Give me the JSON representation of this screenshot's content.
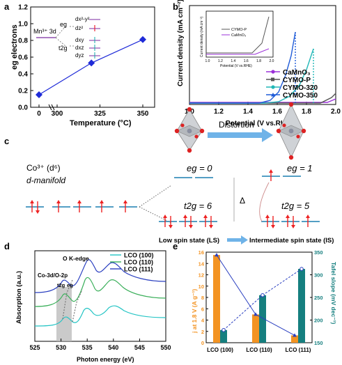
{
  "panels": {
    "a": "a",
    "b": "b",
    "c": "c",
    "d": "d",
    "e": "e"
  },
  "chart_data": [
    {
      "panel": "a",
      "type": "line",
      "xlabel": "Temperature (°C)",
      "ylabel": "eg electrons",
      "x_ticks": [
        "0",
        "300",
        "325",
        "350"
      ],
      "y_ticks": [
        "0.0",
        "0.2",
        "0.4",
        "0.6",
        "0.8",
        "1.0",
        "1.2"
      ],
      "ylim": [
        0.0,
        1.2
      ],
      "x": [
        0,
        320,
        350
      ],
      "y": [
        0.15,
        0.53,
        0.81
      ],
      "marker": "diamond",
      "color": "#1f2bd8",
      "inset": {
        "ion": "Mn³⁺ 3d",
        "eg": "eg",
        "t2g": "t2g",
        "orbitals": [
          "dx²-y²",
          "dz²",
          "dxy",
          "dxz",
          "dyz"
        ]
      }
    },
    {
      "panel": "b",
      "type": "line",
      "xlabel": "Potential (V vs.RHE)",
      "ylabel": "Current density (mA cm⁻²)",
      "x_ticks": [
        "1.0",
        "1.2",
        "1.4",
        "1.6",
        "1.8",
        "2.0"
      ],
      "xlim": [
        1.0,
        2.0
      ],
      "series": [
        {
          "name": "CaMnO₃",
          "color": "#9b30d9",
          "marker": "dot"
        },
        {
          "name": "CYMO-P",
          "color": "#555555",
          "marker": "square"
        },
        {
          "name": "CYMO-320",
          "color": "#20b7b7",
          "marker": "dot"
        },
        {
          "name": "CYMO-350",
          "color": "#1f5bd8",
          "marker": "triangle"
        }
      ],
      "inset": {
        "xlabel": "Potential (V vs.RHE)",
        "ylabel": "Current density (mA cm⁻²)",
        "x_ticks": [
          "1.0",
          "1.2",
          "1.4",
          "1.6",
          "1.8",
          "2.0"
        ],
        "series": [
          {
            "name": "CYMO-P",
            "color": "#555555"
          },
          {
            "name": "CaMnO₃",
            "color": "#9b30d9"
          }
        ]
      }
    },
    {
      "panel": "c",
      "type": "diagram",
      "ion": "Co³⁺ (d⁶)",
      "manifold": "d-manifold",
      "distortion": "Distortion",
      "eg_ls": "eg = 0",
      "t2g_ls": "t2g = 6",
      "eg_is": "eg = 1",
      "t2g_is": "t2g = 5",
      "delta": "Δ",
      "ls_label": "Low spin state (LS)",
      "is_label": "Intermediate spin state (IS)"
    },
    {
      "panel": "d",
      "type": "line",
      "xlabel": "Photon energy (eV)",
      "ylabel": "Absorption (a.u.)",
      "x_ticks": [
        "525",
        "530",
        "535",
        "540",
        "545",
        "550"
      ],
      "xlim": [
        525,
        550
      ],
      "annotations": [
        "O K-edge",
        "Co-3d/O-2p",
        "t2g",
        "eg"
      ],
      "series": [
        {
          "name": "LCO (100)",
          "color": "#22c4c4"
        },
        {
          "name": "LCO (110)",
          "color": "#3aaf5a"
        },
        {
          "name": "LCO (111)",
          "color": "#2a3fc0"
        }
      ]
    },
    {
      "panel": "e",
      "type": "bar",
      "categories": [
        "LCO (100)",
        "LCO (110)",
        "LCO (111)"
      ],
      "ylabel_left": "j at 1.8 V (A g⁻¹)",
      "ylabel_right": "Tafel slope (mV dec⁻¹)",
      "left_ticks": [
        "0",
        "2",
        "4",
        "6",
        "8",
        "10",
        "12",
        "14",
        "16"
      ],
      "right_ticks": [
        "150",
        "200",
        "250",
        "300",
        "350"
      ],
      "ylim_left": [
        0,
        16
      ],
      "ylim_right": [
        150,
        350
      ],
      "series": [
        {
          "name": "j at 1.8 V",
          "axis": "left",
          "color": "#f39322",
          "values": [
            15.5,
            5.0,
            1.3
          ]
        },
        {
          "name": "Tafel slope",
          "axis": "right",
          "color": "#157f7f",
          "values": [
            178,
            255,
            313
          ]
        }
      ]
    }
  ]
}
